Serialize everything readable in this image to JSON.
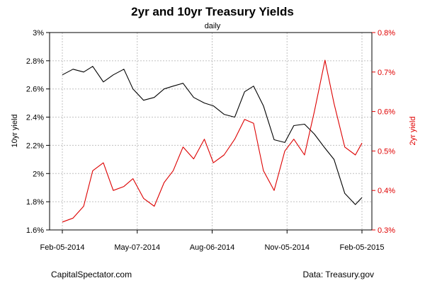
{
  "colors": {
    "ten_year": "#000000",
    "two_year": "#dd0000",
    "grid": "#c0c0c0"
  },
  "footer": {
    "left": "CapitalSpectator.com",
    "right": "Data: Treasury.gov"
  },
  "chart_data": {
    "type": "line",
    "title": "2yr and 10yr Treasury Yields",
    "subtitle": "daily",
    "xlabel": "",
    "ylabel_left": "10yr yield",
    "ylabel_right": "2yr yield",
    "ylim_left": [
      1.6,
      3.0
    ],
    "ylim_right": [
      0.3,
      0.8
    ],
    "y_ticks_left": [
      {
        "v": 1.6,
        "label": "1.6%"
      },
      {
        "v": 1.8,
        "label": "1.8%"
      },
      {
        "v": 2.0,
        "label": "2%"
      },
      {
        "v": 2.2,
        "label": "2.2%"
      },
      {
        "v": 2.4,
        "label": "2.4%"
      },
      {
        "v": 2.6,
        "label": "2.6%"
      },
      {
        "v": 2.8,
        "label": "2.8%"
      },
      {
        "v": 3.0,
        "label": "3%"
      }
    ],
    "y_ticks_right": [
      {
        "v": 0.3,
        "label": "0.3%"
      },
      {
        "v": 0.4,
        "label": "0.4%"
      },
      {
        "v": 0.5,
        "label": "0.5%"
      },
      {
        "v": 0.6,
        "label": "0.6%"
      },
      {
        "v": 0.7,
        "label": "0.7%"
      },
      {
        "v": 0.8,
        "label": "0.8%"
      }
    ],
    "x_ticks": [
      "Feb-05-2014",
      "May-07-2014",
      "Aug-06-2014",
      "Nov-05-2014",
      "Feb-05-2015"
    ],
    "grid": true,
    "series": [
      {
        "name": "10yr yield",
        "axis": "left",
        "color": "#000000",
        "x": [
          "2014-02-05",
          "2014-02-18",
          "2014-03-03",
          "2014-03-14",
          "2014-03-27",
          "2014-04-08",
          "2014-04-21",
          "2014-05-02",
          "2014-05-15",
          "2014-05-28",
          "2014-06-09",
          "2014-06-20",
          "2014-07-02",
          "2014-07-15",
          "2014-07-28",
          "2014-08-08",
          "2014-08-21",
          "2014-09-03",
          "2014-09-15",
          "2014-09-26",
          "2014-10-08",
          "2014-10-21",
          "2014-11-03",
          "2014-11-14",
          "2014-11-27",
          "2014-12-09",
          "2014-12-22",
          "2015-01-02",
          "2015-01-15",
          "2015-01-28",
          "2015-02-05"
        ],
        "values": [
          2.7,
          2.74,
          2.72,
          2.76,
          2.65,
          2.7,
          2.74,
          2.6,
          2.52,
          2.54,
          2.6,
          2.62,
          2.64,
          2.54,
          2.5,
          2.48,
          2.42,
          2.4,
          2.58,
          2.62,
          2.48,
          2.24,
          2.22,
          2.34,
          2.35,
          2.28,
          2.18,
          2.1,
          1.86,
          1.78,
          1.83
        ]
      },
      {
        "name": "2yr yield",
        "axis": "right",
        "color": "#dd0000",
        "x": [
          "2014-02-05",
          "2014-02-18",
          "2014-03-03",
          "2014-03-14",
          "2014-03-27",
          "2014-04-08",
          "2014-04-21",
          "2014-05-02",
          "2014-05-15",
          "2014-05-28",
          "2014-06-09",
          "2014-06-20",
          "2014-07-02",
          "2014-07-15",
          "2014-07-28",
          "2014-08-08",
          "2014-08-21",
          "2014-09-03",
          "2014-09-15",
          "2014-09-26",
          "2014-10-08",
          "2014-10-21",
          "2014-11-03",
          "2014-11-14",
          "2014-11-27",
          "2014-12-09",
          "2014-12-22",
          "2015-01-02",
          "2015-01-15",
          "2015-01-28",
          "2015-02-05"
        ],
        "values": [
          0.32,
          0.33,
          0.36,
          0.45,
          0.47,
          0.4,
          0.41,
          0.43,
          0.38,
          0.36,
          0.42,
          0.45,
          0.51,
          0.48,
          0.53,
          0.47,
          0.49,
          0.53,
          0.58,
          0.57,
          0.45,
          0.4,
          0.5,
          0.53,
          0.49,
          0.6,
          0.73,
          0.62,
          0.51,
          0.49,
          0.52
        ]
      }
    ]
  }
}
